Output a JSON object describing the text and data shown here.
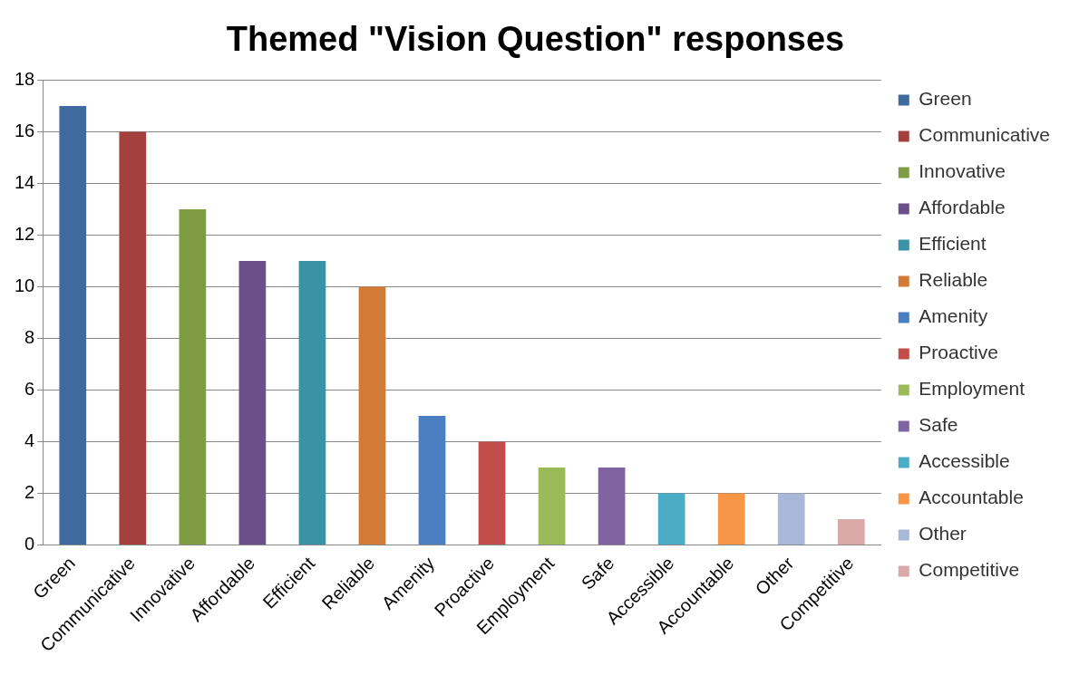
{
  "chart_data": {
    "type": "bar",
    "title": "Themed \"Vision Question\" responses",
    "categories": [
      "Green",
      "Communicative",
      "Innovative",
      "Affordable",
      "Efficient",
      "Reliable",
      "Amenity",
      "Proactive",
      "Employment",
      "Safe",
      "Accessible",
      "Accountable",
      "Other",
      "Competitive"
    ],
    "series": [
      {
        "name": "Green",
        "color": "#3e6a9e",
        "values": [
          17,
          null,
          null,
          null,
          null,
          null,
          null,
          null,
          null,
          null,
          null,
          null,
          null,
          null
        ]
      },
      {
        "name": "Communicative",
        "color": "#a4403d",
        "values": [
          null,
          16,
          null,
          null,
          null,
          null,
          null,
          null,
          null,
          null,
          null,
          null,
          null,
          null
        ]
      },
      {
        "name": "Innovative",
        "color": "#7f9c45",
        "values": [
          null,
          null,
          13,
          null,
          null,
          null,
          null,
          null,
          null,
          null,
          null,
          null,
          null,
          null
        ]
      },
      {
        "name": "Affordable",
        "color": "#6a4f8a",
        "values": [
          null,
          null,
          null,
          11,
          null,
          null,
          null,
          null,
          null,
          null,
          null,
          null,
          null,
          null
        ]
      },
      {
        "name": "Efficient",
        "color": "#3a92a6",
        "values": [
          null,
          null,
          null,
          null,
          11,
          null,
          null,
          null,
          null,
          null,
          null,
          null,
          null,
          null
        ]
      },
      {
        "name": "Reliable",
        "color": "#d27b36",
        "values": [
          null,
          null,
          null,
          null,
          null,
          10,
          null,
          null,
          null,
          null,
          null,
          null,
          null,
          null
        ]
      },
      {
        "name": "Amenity",
        "color": "#4a7fc1",
        "values": [
          null,
          null,
          null,
          null,
          null,
          null,
          5,
          null,
          null,
          null,
          null,
          null,
          null,
          null
        ]
      },
      {
        "name": "Proactive",
        "color": "#c24e4b",
        "values": [
          null,
          null,
          null,
          null,
          null,
          null,
          null,
          4,
          null,
          null,
          null,
          null,
          null,
          null
        ]
      },
      {
        "name": "Employment",
        "color": "#9bbb59",
        "values": [
          null,
          null,
          null,
          null,
          null,
          null,
          null,
          null,
          3,
          null,
          null,
          null,
          null,
          null
        ]
      },
      {
        "name": "Safe",
        "color": "#8064a2",
        "values": [
          null,
          null,
          null,
          null,
          null,
          null,
          null,
          null,
          null,
          3,
          null,
          null,
          null,
          null
        ]
      },
      {
        "name": "Accessible",
        "color": "#4bacc6",
        "values": [
          null,
          null,
          null,
          null,
          null,
          null,
          null,
          null,
          null,
          null,
          2,
          null,
          null,
          null
        ]
      },
      {
        "name": "Accountable",
        "color": "#f79646",
        "values": [
          null,
          null,
          null,
          null,
          null,
          null,
          null,
          null,
          null,
          null,
          null,
          2,
          null,
          null
        ]
      },
      {
        "name": "Other",
        "color": "#a9b8d8",
        "values": [
          null,
          null,
          null,
          null,
          null,
          null,
          null,
          null,
          null,
          null,
          null,
          null,
          2,
          null
        ]
      },
      {
        "name": "Competitive",
        "color": "#dba8a8",
        "values": [
          null,
          null,
          null,
          null,
          null,
          null,
          null,
          null,
          null,
          null,
          null,
          null,
          null,
          1
        ]
      }
    ],
    "ylim": [
      0,
      18
    ],
    "yticks": [
      0,
      2,
      4,
      6,
      8,
      10,
      12,
      14,
      16,
      18
    ],
    "grid": "y",
    "legend": "right"
  }
}
